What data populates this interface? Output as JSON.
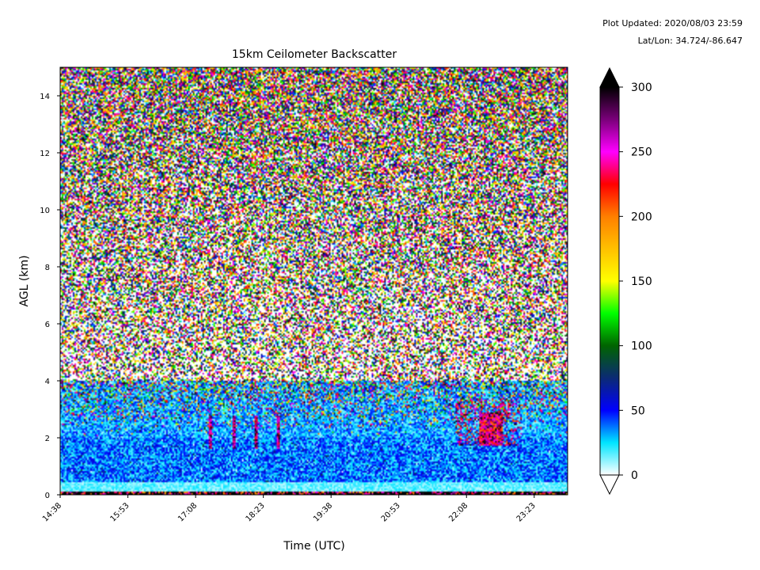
{
  "meta": {
    "updated": "Plot Updated: 2020/08/03 23:59",
    "latlon": "Lat/Lon: 34.724/-86.647"
  },
  "chart_data": {
    "type": "heatmap",
    "title": "15km Ceilometer Backscatter",
    "xlabel": "Time (UTC)",
    "ylabel": "AGL (km)",
    "x_ticks": [
      "14:38",
      "15:53",
      "17:08",
      "18:23",
      "19:38",
      "20:53",
      "22:08",
      "23:23"
    ],
    "x_range_hours_utc": [
      14.633,
      24.0
    ],
    "ylim": [
      0,
      15
    ],
    "y_ticks": [
      0,
      2,
      4,
      6,
      8,
      10,
      12,
      14
    ],
    "colorbar": {
      "range": [
        0,
        300
      ],
      "ticks": [
        0,
        50,
        100,
        150,
        200,
        250,
        300
      ],
      "extend": "both",
      "colors": [
        {
          "v": 0,
          "c": "#ffffff"
        },
        {
          "v": 25,
          "c": "#00e5ff"
        },
        {
          "v": 50,
          "c": "#0000ff"
        },
        {
          "v": 75,
          "c": "#0b2a75"
        },
        {
          "v": 100,
          "c": "#006400"
        },
        {
          "v": 125,
          "c": "#00ff00"
        },
        {
          "v": 150,
          "c": "#ffff00"
        },
        {
          "v": 175,
          "c": "#ffc000"
        },
        {
          "v": 200,
          "c": "#ff7f00"
        },
        {
          "v": 225,
          "c": "#ff0000"
        },
        {
          "v": 250,
          "c": "#ff00ff"
        },
        {
          "v": 275,
          "c": "#7a007a"
        },
        {
          "v": 300,
          "c": "#000000"
        }
      ]
    },
    "features": [
      {
        "name": "boundary layer aerosol",
        "alt_km": [
          0,
          2
        ],
        "value_range": [
          10,
          60
        ]
      },
      {
        "name": "low noise layer",
        "alt_km": [
          0.1,
          0.4
        ],
        "value_range": [
          5,
          20
        ]
      },
      {
        "name": "cloud cluster",
        "time_utc": [
          "21:55",
          "23:10"
        ],
        "alt_km": [
          1.7,
          3.4
        ],
        "value_range": [
          150,
          300
        ]
      },
      {
        "name": "isolated cloud returns",
        "time_utc": [
          "17:25",
          "18:40"
        ],
        "alt_km": [
          1.6,
          2.8
        ],
        "value_range": [
          200,
          300
        ]
      },
      {
        "name": "upper-level noise",
        "alt_km": [
          4,
          15
        ],
        "value_range": [
          0,
          300
        ]
      }
    ]
  }
}
